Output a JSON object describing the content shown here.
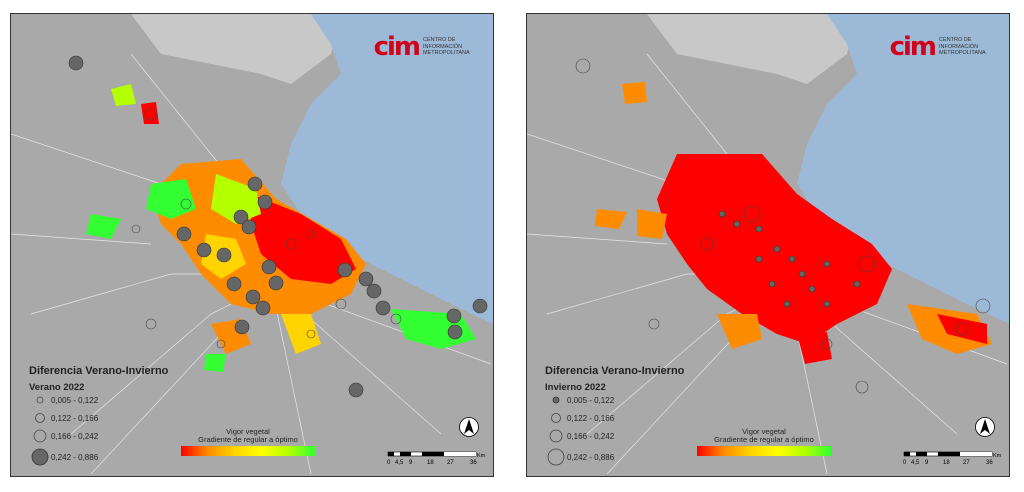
{
  "colors": {
    "water": "#9db9d8",
    "land": "#a9a9a9",
    "land_light": "#c8c8c8",
    "boundary": "#e6e6e6",
    "ramp": [
      "#ff0000",
      "#ff8c00",
      "#ffd400",
      "#ffff00",
      "#b4ff00",
      "#33ff33"
    ],
    "point_fill_large": "#666666"
  },
  "logo": {
    "mark": "cim",
    "text": "Centro de Información Metropolitana"
  },
  "panels": [
    {
      "legend_title": "Diferencia Verano-Invierno",
      "legend_subtitle": "Verano 2022",
      "classes": [
        "0,005 - 0,122",
        "0,122 - 0,166",
        "0,166 - 0,242",
        "0,242 - 0,886"
      ],
      "ramp_title": "Vigor vegetal",
      "ramp_subtitle": "Gradiente de regular a óptimo",
      "scale_labels": [
        "0",
        "4,5",
        "9",
        "18",
        "27",
        "36"
      ],
      "scale_unit": "Km",
      "dominant_color": "mixed"
    },
    {
      "legend_title": "Diferencia Verano-Invierno",
      "legend_subtitle": "Invierno 2022",
      "classes": [
        "0,005 - 0,122",
        "0,122 - 0,166",
        "0,166 - 0,242",
        "0,242 - 0,886"
      ],
      "ramp_title": "Vigor vegetal",
      "ramp_subtitle": "Gradiente de regular a óptimo",
      "scale_labels": [
        "0",
        "4,5",
        "9",
        "18",
        "27",
        "36"
      ],
      "scale_unit": "Km",
      "dominant_color": "red"
    }
  ]
}
